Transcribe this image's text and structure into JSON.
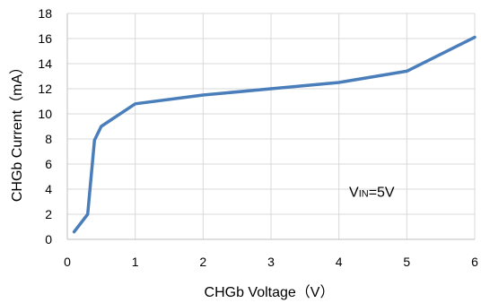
{
  "chart_data": {
    "type": "line",
    "title": "",
    "xlabel": "CHGb Voltage（V）",
    "ylabel": "CHGb Current（mA）",
    "xlim": [
      0,
      6
    ],
    "ylim": [
      0,
      18
    ],
    "xticks": [
      "0",
      "1",
      "2",
      "3",
      "4",
      "5",
      "6"
    ],
    "yticks": [
      "0",
      "2",
      "4",
      "6",
      "8",
      "10",
      "12",
      "14",
      "16",
      "18"
    ],
    "grid": true,
    "series": [
      {
        "color": "#4A7EBB",
        "x": [
          0.1,
          0.3,
          0.4,
          0.5,
          1.0,
          2.0,
          3.0,
          4.0,
          5.0,
          6.0
        ],
        "y": [
          0.6,
          2.0,
          7.9,
          9.0,
          10.8,
          11.5,
          12.0,
          12.5,
          13.4,
          16.1
        ]
      }
    ],
    "annotation": {
      "main": "V",
      "sub": "IN",
      "tail": "=5V",
      "at_x": 4.15,
      "at_y": 3.4
    }
  }
}
